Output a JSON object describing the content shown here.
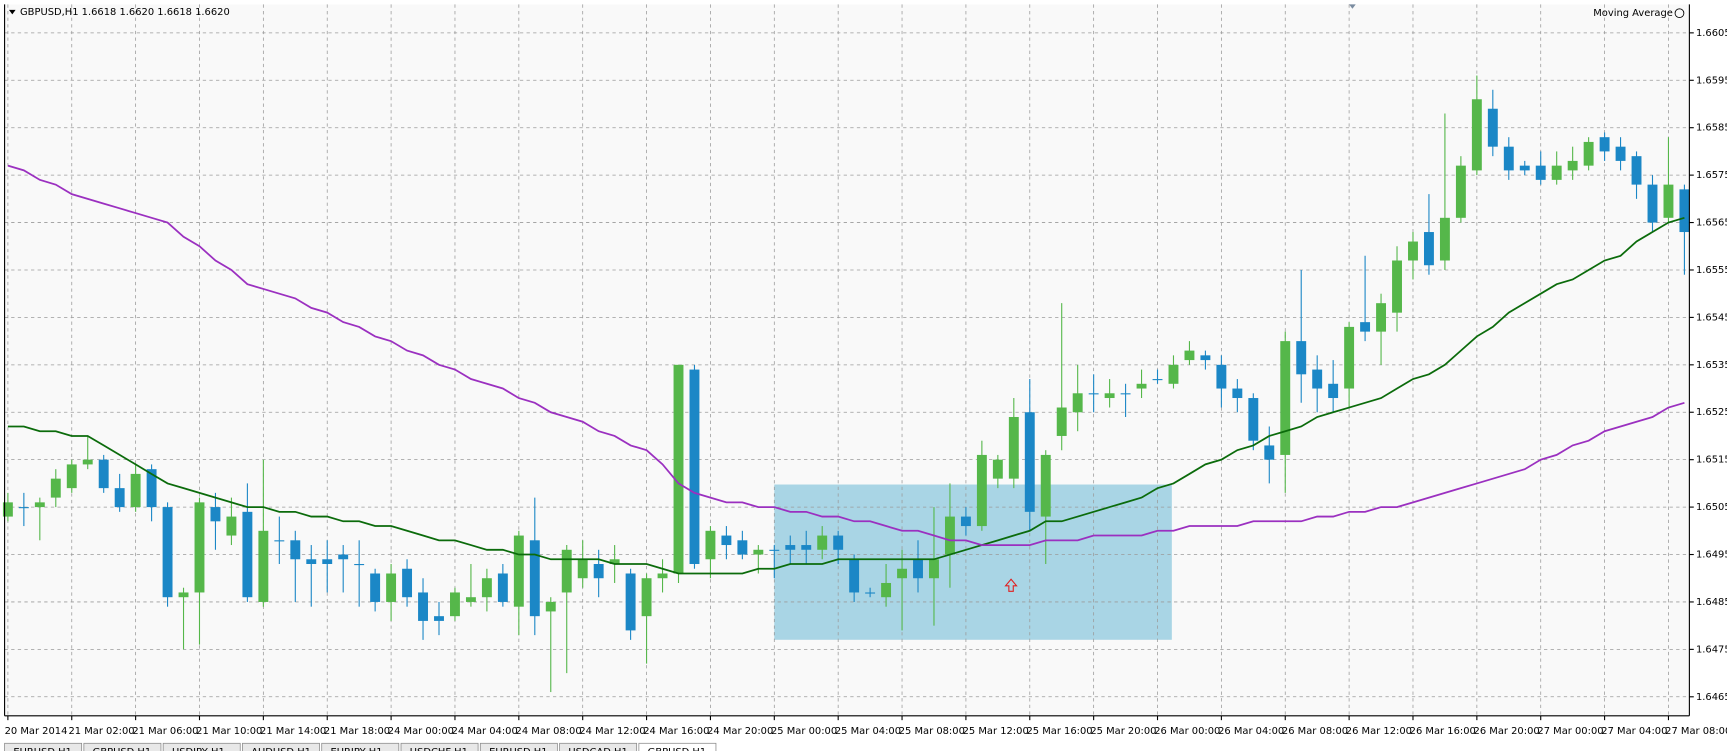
{
  "chart_data": {
    "type": "candlestick",
    "title": "GBPUSD,H1",
    "subtitle": "1.6618 1.6620 1.6618 1.6620",
    "indicator_label": "Moving Average",
    "up_color": "#55b74a",
    "down_color": "#1b87c6",
    "grid": true,
    "ylim": [
      1.6461,
      1.6611
    ],
    "yticks": [
      1.6605,
      1.6595,
      1.6585,
      1.6575,
      1.6565,
      1.6555,
      1.6545,
      1.6535,
      1.6525,
      1.6515,
      1.6505,
      1.6495,
      1.6485,
      1.6475,
      1.6465
    ],
    "categories": [
      "20 Mar 2014",
      null,
      null,
      null,
      "21 Mar 02:00",
      null,
      null,
      null,
      "21 Mar 06:00",
      null,
      null,
      null,
      "21 Mar 10:00",
      null,
      null,
      null,
      "21 Mar 14:00",
      null,
      null,
      null,
      "21 Mar 18:00",
      null,
      null,
      null,
      "24 Mar 00:00",
      null,
      null,
      null,
      "24 Mar 04:00",
      null,
      null,
      null,
      "24 Mar 08:00",
      null,
      null,
      null,
      "24 Mar 12:00",
      null,
      null,
      null,
      "24 Mar 16:00",
      null,
      null,
      null,
      "24 Mar 20:00",
      null,
      null,
      null,
      "25 Mar 00:00",
      null,
      null,
      null,
      "25 Mar 04:00",
      null,
      null,
      null,
      "25 Mar 08:00",
      null,
      null,
      null,
      "25 Mar 12:00",
      null,
      null,
      null,
      "25 Mar 16:00",
      null,
      null,
      null,
      "25 Mar 20:00",
      null,
      null,
      null,
      "26 Mar 00:00",
      null,
      null,
      null,
      "26 Mar 04:00",
      null,
      null,
      null,
      "26 Mar 08:00",
      null,
      null,
      null,
      "26 Mar 12:00",
      null,
      null,
      null,
      "26 Mar 16:00",
      null,
      null,
      null,
      "26 Mar 20:00",
      null,
      null,
      null,
      "27 Mar 00:00",
      null,
      null,
      null,
      "27 Mar 04:00",
      null,
      null,
      null,
      "27 Mar 08:00",
      null
    ],
    "open": [
      1.6503,
      1.6505,
      1.6505,
      1.6507,
      1.6509,
      1.6514,
      1.6515,
      1.6509,
      1.6505,
      1.6513,
      1.6505,
      1.6486,
      1.6487,
      1.6505,
      1.6499,
      1.6504,
      1.6485,
      1.6498,
      1.6498,
      1.6494,
      1.6494,
      1.6495,
      1.6493,
      1.6491,
      1.6485,
      1.6492,
      1.6487,
      1.6482,
      1.6482,
      1.6485,
      1.6486,
      1.6491,
      1.6484,
      1.6498,
      1.6483,
      1.6487,
      1.649,
      1.6493,
      1.6493,
      1.6491,
      1.6482,
      1.649,
      1.6491,
      1.6534,
      1.6494,
      1.6499,
      1.6498,
      1.6495,
      1.6496,
      1.6497,
      1.6497,
      1.6496,
      1.6499,
      1.6494,
      1.6487,
      1.6486,
      1.649,
      1.6494,
      1.649,
      1.6495,
      1.6503,
      1.6501,
      1.6511,
      1.6511,
      1.6525,
      1.6503,
      1.652,
      1.6525,
      1.6529,
      1.6528,
      1.6529,
      1.653,
      1.6532,
      1.6531,
      1.6536,
      1.6537,
      1.6535,
      1.653,
      1.6528,
      1.6518,
      1.6516,
      1.654,
      1.6534,
      1.6531,
      1.653,
      1.6544,
      1.6542,
      1.6546,
      1.6557,
      1.6563,
      1.6557,
      1.6566,
      1.6576,
      1.6589,
      1.6581,
      1.6577,
      1.6577,
      1.6574,
      1.6576,
      1.6577,
      1.6583,
      1.6581,
      1.6579,
      1.6573,
      1.6566,
      1.6572
    ],
    "high": [
      1.6508,
      1.6508,
      1.6507,
      1.6513,
      1.6515,
      1.652,
      1.6516,
      1.6512,
      1.6514,
      1.6514,
      1.6506,
      1.6488,
      1.6507,
      1.6508,
      1.6507,
      1.651,
      1.6515,
      1.6503,
      1.65,
      1.6497,
      1.6498,
      1.6497,
      1.6498,
      1.6492,
      1.6493,
      1.6494,
      1.649,
      1.6485,
      1.6488,
      1.6493,
      1.6492,
      1.6493,
      1.65,
      1.6507,
      1.6486,
      1.6497,
      1.6498,
      1.6496,
      1.6497,
      1.6492,
      1.6491,
      1.6494,
      1.6535,
      1.6535,
      1.6501,
      1.6501,
      1.65,
      1.6497,
      1.6497,
      1.6499,
      1.65,
      1.6501,
      1.65,
      1.6495,
      1.6488,
      1.6493,
      1.6496,
      1.6498,
      1.6505,
      1.651,
      1.6505,
      1.6519,
      1.6516,
      1.6528,
      1.6532,
      1.6517,
      1.6548,
      1.6535,
      1.6533,
      1.6532,
      1.6531,
      1.6534,
      1.6534,
      1.6537,
      1.654,
      1.6538,
      1.6537,
      1.6532,
      1.6529,
      1.6522,
      1.6542,
      1.6555,
      1.6537,
      1.6536,
      1.6544,
      1.6558,
      1.655,
      1.656,
      1.6563,
      1.6571,
      1.6588,
      1.6579,
      1.6596,
      1.6593,
      1.6583,
      1.6578,
      1.658,
      1.658,
      1.6581,
      1.6583,
      1.6584,
      1.6583,
      1.658,
      1.6575,
      1.6583,
      1.6573
    ],
    "low": [
      1.6502,
      1.6501,
      1.6498,
      1.6505,
      1.6508,
      1.6513,
      1.6508,
      1.6504,
      1.6504,
      1.6502,
      1.6484,
      1.6475,
      1.6476,
      1.6496,
      1.6497,
      1.6485,
      1.6484,
      1.6493,
      1.6485,
      1.6484,
      1.6487,
      1.6487,
      1.6484,
      1.6483,
      1.6481,
      1.6484,
      1.6477,
      1.6478,
      1.6481,
      1.6484,
      1.6483,
      1.6484,
      1.6478,
      1.6478,
      1.6466,
      1.647,
      1.6488,
      1.6486,
      1.6489,
      1.6477,
      1.6472,
      1.6487,
      1.6489,
      1.6492,
      1.649,
      1.6494,
      1.6494,
      1.6491,
      1.649,
      1.6493,
      1.6493,
      1.6494,
      1.6493,
      1.6485,
      1.6486,
      1.6484,
      1.6479,
      1.6487,
      1.648,
      1.6488,
      1.6499,
      1.65,
      1.6509,
      1.6509,
      1.65,
      1.6493,
      1.6517,
      1.6521,
      1.6525,
      1.6526,
      1.6524,
      1.6528,
      1.6531,
      1.653,
      1.6535,
      1.6534,
      1.6526,
      1.6525,
      1.6517,
      1.651,
      1.6508,
      1.6527,
      1.6525,
      1.6525,
      1.6526,
      1.654,
      1.6535,
      1.6542,
      1.6553,
      1.6554,
      1.6555,
      1.6565,
      1.6575,
      1.6579,
      1.6574,
      1.6575,
      1.6573,
      1.6573,
      1.6574,
      1.6576,
      1.6578,
      1.6576,
      1.657,
      1.6563,
      1.6565,
      1.6554
    ],
    "close": [
      1.6506,
      1.6505,
      1.6506,
      1.6511,
      1.6514,
      1.6515,
      1.6509,
      1.6505,
      1.6512,
      1.6505,
      1.6486,
      1.6487,
      1.6506,
      1.6502,
      1.6503,
      1.6486,
      1.65,
      1.6498,
      1.6494,
      1.6493,
      1.6493,
      1.6494,
      1.6493,
      1.6485,
      1.6491,
      1.6486,
      1.6481,
      1.6481,
      1.6487,
      1.6486,
      1.649,
      1.6485,
      1.6499,
      1.6482,
      1.6485,
      1.6496,
      1.6494,
      1.649,
      1.6494,
      1.6479,
      1.649,
      1.6491,
      1.6535,
      1.6493,
      1.65,
      1.6497,
      1.6495,
      1.6496,
      1.6496,
      1.6496,
      1.6496,
      1.6499,
      1.6496,
      1.6487,
      1.6487,
      1.6489,
      1.6492,
      1.649,
      1.6494,
      1.6503,
      1.6501,
      1.6516,
      1.6515,
      1.6524,
      1.6504,
      1.6516,
      1.6526,
      1.6529,
      1.6529,
      1.6529,
      1.6529,
      1.6531,
      1.6532,
      1.6535,
      1.6538,
      1.6536,
      1.653,
      1.6528,
      1.6519,
      1.6515,
      1.654,
      1.6533,
      1.653,
      1.6528,
      1.6543,
      1.6542,
      1.6548,
      1.6557,
      1.6561,
      1.6556,
      1.6566,
      1.6577,
      1.6591,
      1.6581,
      1.6576,
      1.6576,
      1.6574,
      1.6577,
      1.6578,
      1.6582,
      1.658,
      1.6578,
      1.6573,
      1.6565,
      1.6573,
      1.6563
    ],
    "lines": [
      {
        "color": "#0b6b0b",
        "values": [
          1.6522,
          1.6522,
          1.6521,
          1.6521,
          1.652,
          1.652,
          1.6518,
          1.6516,
          1.6514,
          1.6512,
          1.651,
          1.6509,
          1.6508,
          1.6507,
          1.6506,
          1.6505,
          1.6505,
          1.6504,
          1.6504,
          1.6503,
          1.6503,
          1.6502,
          1.6502,
          1.6501,
          1.6501,
          1.65,
          1.6499,
          1.6498,
          1.6498,
          1.6497,
          1.6496,
          1.6496,
          1.6495,
          1.6495,
          1.6494,
          1.6494,
          1.6494,
          1.6494,
          1.6493,
          1.6493,
          1.6493,
          1.6492,
          1.6491,
          1.6491,
          1.6491,
          1.6491,
          1.6491,
          1.6492,
          1.6492,
          1.6493,
          1.6493,
          1.6493,
          1.6494,
          1.6494,
          1.6494,
          1.6494,
          1.6494,
          1.6494,
          1.6494,
          1.6495,
          1.6496,
          1.6497,
          1.6498,
          1.6499,
          1.65,
          1.6502,
          1.6502,
          1.6503,
          1.6504,
          1.6505,
          1.6506,
          1.6507,
          1.6509,
          1.651,
          1.6512,
          1.6514,
          1.6515,
          1.6517,
          1.6518,
          1.652,
          1.6521,
          1.6522,
          1.6524,
          1.6525,
          1.6526,
          1.6527,
          1.6528,
          1.653,
          1.6532,
          1.6533,
          1.6535,
          1.6538,
          1.6541,
          1.6543,
          1.6546,
          1.6548,
          1.655,
          1.6552,
          1.6553,
          1.6555,
          1.6557,
          1.6558,
          1.6561,
          1.6563,
          1.6565,
          1.6566
        ]
      },
      {
        "color": "#9b30c0",
        "values": [
          1.6577,
          1.6576,
          1.6574,
          1.6573,
          1.6571,
          1.657,
          1.6569,
          1.6568,
          1.6567,
          1.6566,
          1.6565,
          1.6562,
          1.656,
          1.6557,
          1.6555,
          1.6552,
          1.6551,
          1.655,
          1.6549,
          1.6547,
          1.6546,
          1.6544,
          1.6543,
          1.6541,
          1.654,
          1.6538,
          1.6537,
          1.6535,
          1.6534,
          1.6532,
          1.6531,
          1.653,
          1.6528,
          1.6527,
          1.6525,
          1.6524,
          1.6523,
          1.6521,
          1.652,
          1.6518,
          1.6517,
          1.6514,
          1.651,
          1.6508,
          1.6507,
          1.6506,
          1.6506,
          1.6505,
          1.6505,
          1.6504,
          1.6504,
          1.6503,
          1.6503,
          1.6502,
          1.6502,
          1.6501,
          1.65,
          1.65,
          1.6499,
          1.6498,
          1.6498,
          1.6497,
          1.6497,
          1.6497,
          1.6497,
          1.6498,
          1.6498,
          1.6498,
          1.6499,
          1.6499,
          1.6499,
          1.6499,
          1.65,
          1.65,
          1.6501,
          1.6501,
          1.6501,
          1.6501,
          1.6502,
          1.6502,
          1.6502,
          1.6502,
          1.6503,
          1.6503,
          1.6504,
          1.6504,
          1.6505,
          1.6505,
          1.6506,
          1.6507,
          1.6508,
          1.6509,
          1.651,
          1.6511,
          1.6512,
          1.6513,
          1.6515,
          1.6516,
          1.6518,
          1.6519,
          1.6521,
          1.6522,
          1.6523,
          1.6524,
          1.6526,
          1.6527
        ]
      }
    ]
  },
  "tabs": [
    "EURUSD,H1",
    "GBPUSD,H1",
    "USDJPY,H1",
    "AUDUSD,H1",
    "EURJPY,H1",
    "USDCHF,H1",
    "EURUSD,H1",
    "USDCAD,H1",
    "GBPUSD,H1"
  ]
}
